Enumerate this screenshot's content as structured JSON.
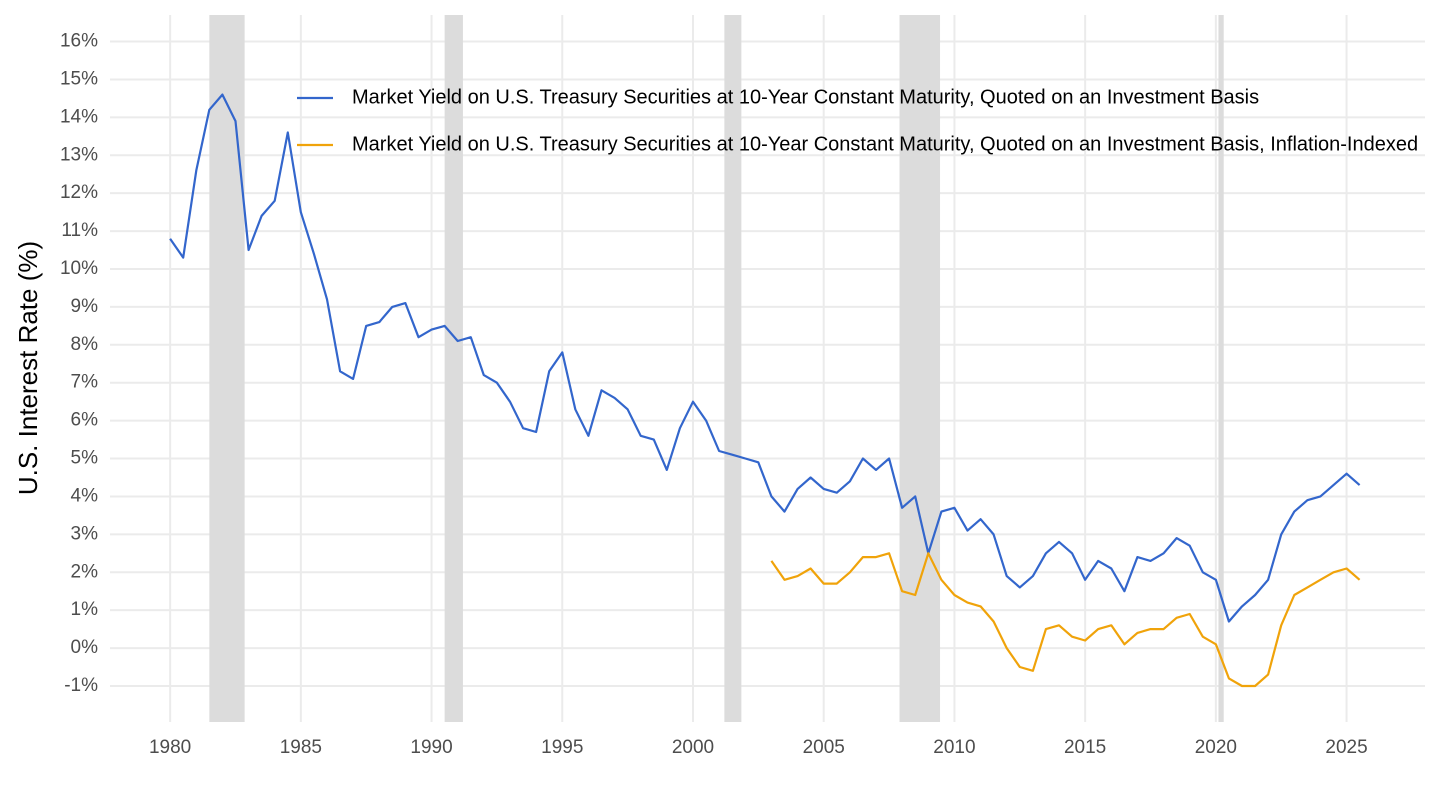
{
  "chart_data": {
    "type": "line",
    "y_label": "U.S. Interest Rate (%)",
    "x": [
      1980.0,
      1980.5,
      1981.0,
      1981.5,
      1982.0,
      1982.5,
      1983.0,
      1983.5,
      1984.0,
      1984.5,
      1985.0,
      1985.5,
      1986.0,
      1986.5,
      1987.0,
      1987.5,
      1988.0,
      1988.5,
      1989.0,
      1989.5,
      1990.0,
      1990.5,
      1991.0,
      1991.5,
      1992.0,
      1992.5,
      1993.0,
      1993.5,
      1994.0,
      1994.5,
      1995.0,
      1995.5,
      1996.0,
      1996.5,
      1997.0,
      1997.5,
      1998.0,
      1998.5,
      1999.0,
      1999.5,
      2000.0,
      2000.5,
      2001.0,
      2001.5,
      2002.0,
      2002.5,
      2003.0,
      2003.5,
      2004.0,
      2004.5,
      2005.0,
      2005.5,
      2006.0,
      2006.5,
      2007.0,
      2007.5,
      2008.0,
      2008.5,
      2009.0,
      2009.5,
      2010.0,
      2010.5,
      2011.0,
      2011.5,
      2012.0,
      2012.5,
      2013.0,
      2013.5,
      2014.0,
      2014.5,
      2015.0,
      2015.5,
      2016.0,
      2016.5,
      2017.0,
      2017.5,
      2018.0,
      2018.5,
      2019.0,
      2019.5,
      2020.0,
      2020.5,
      2021.0,
      2021.5,
      2022.0,
      2022.5,
      2023.0,
      2023.5,
      2024.0,
      2024.5,
      2025.0,
      2025.5
    ],
    "series": [
      {
        "name": "Market Yield on U.S. Treasury Securities at 10-Year Constant Maturity, Quoted on an Investment Basis",
        "color": "#3366cc",
        "values": [
          10.8,
          10.3,
          12.6,
          14.2,
          14.6,
          13.9,
          10.5,
          11.4,
          11.8,
          13.6,
          11.5,
          10.4,
          9.2,
          7.3,
          7.1,
          8.5,
          8.6,
          9.0,
          9.1,
          8.2,
          8.4,
          8.5,
          8.1,
          8.2,
          7.2,
          7.0,
          6.5,
          5.8,
          5.7,
          7.3,
          7.8,
          6.3,
          5.6,
          6.8,
          6.6,
          6.3,
          5.6,
          5.5,
          4.7,
          5.8,
          6.5,
          6.0,
          5.2,
          5.1,
          5.0,
          4.9,
          4.0,
          3.6,
          4.2,
          4.5,
          4.2,
          4.1,
          4.4,
          5.0,
          4.7,
          5.0,
          3.7,
          4.0,
          2.5,
          3.6,
          3.7,
          3.1,
          3.4,
          3.0,
          1.9,
          1.6,
          1.9,
          2.5,
          2.8,
          2.5,
          1.8,
          2.3,
          2.1,
          1.5,
          2.4,
          2.3,
          2.5,
          2.9,
          2.7,
          2.0,
          1.8,
          0.7,
          1.1,
          1.4,
          1.8,
          3.0,
          3.6,
          3.9,
          4.0,
          4.3,
          4.6,
          4.3
        ]
      },
      {
        "name": "Market Yield on U.S. Treasury Securities at 10-Year Constant Maturity, Quoted on an Investment Basis, Inflation-Indexed",
        "color": "#f0a30a",
        "values": [
          null,
          null,
          null,
          null,
          null,
          null,
          null,
          null,
          null,
          null,
          null,
          null,
          null,
          null,
          null,
          null,
          null,
          null,
          null,
          null,
          null,
          null,
          null,
          null,
          null,
          null,
          null,
          null,
          null,
          null,
          null,
          null,
          null,
          null,
          null,
          null,
          null,
          null,
          null,
          null,
          null,
          null,
          null,
          null,
          null,
          null,
          2.3,
          1.8,
          1.9,
          2.1,
          1.7,
          1.7,
          2.0,
          2.4,
          2.4,
          2.5,
          1.5,
          1.4,
          2.5,
          1.8,
          1.4,
          1.2,
          1.1,
          0.7,
          0.0,
          -0.5,
          -0.6,
          0.5,
          0.6,
          0.3,
          0.2,
          0.5,
          0.6,
          0.1,
          0.4,
          0.5,
          0.5,
          0.8,
          0.9,
          0.3,
          0.1,
          -0.8,
          -1.0,
          -1.0,
          -0.7,
          0.6,
          1.4,
          1.6,
          1.8,
          2.0,
          2.1,
          1.8
        ]
      }
    ],
    "shaded_regions": [
      [
        1981.5,
        1982.85
      ],
      [
        1990.5,
        1991.2
      ],
      [
        2001.2,
        2001.85
      ],
      [
        2007.9,
        2009.45
      ],
      [
        2020.1,
        2020.3
      ]
    ],
    "shade_color": "#dcdcdc",
    "xlim": [
      1977.7,
      2028.0
    ],
    "xticks": [
      1980,
      1985,
      1990,
      1995,
      2000,
      2005,
      2010,
      2015,
      2020,
      2025
    ],
    "ylim": [
      -1.95,
      16.7
    ],
    "yticks": [
      {
        "value": -1,
        "label": "-1%"
      },
      {
        "value": 0,
        "label": "0%"
      },
      {
        "value": 1,
        "label": "1%"
      },
      {
        "value": 2,
        "label": "2%"
      },
      {
        "value": 3,
        "label": "3%"
      },
      {
        "value": 4,
        "label": "4%"
      },
      {
        "value": 5,
        "label": "5%"
      },
      {
        "value": 6,
        "label": "6%"
      },
      {
        "value": 7,
        "label": "7%"
      },
      {
        "value": 8,
        "label": "8%"
      },
      {
        "value": 9,
        "label": "9%"
      },
      {
        "value": 10,
        "label": "10%"
      },
      {
        "value": 11,
        "label": "11%"
      },
      {
        "value": 12,
        "label": "12%"
      },
      {
        "value": 13,
        "label": "13%"
      },
      {
        "value": 14,
        "label": "14%"
      },
      {
        "value": 15,
        "label": "15%"
      },
      {
        "value": 16,
        "label": "16%"
      }
    ],
    "grid": true,
    "legend_position": "top"
  }
}
